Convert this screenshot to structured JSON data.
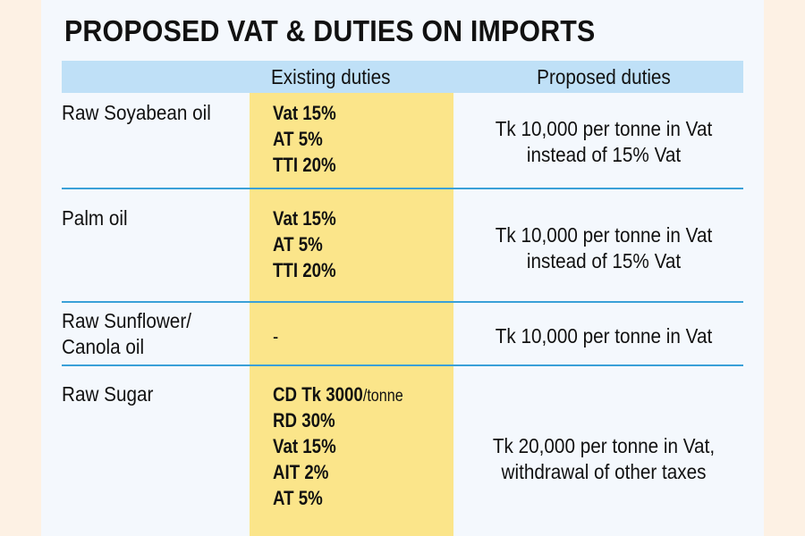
{
  "title": "PROPOSED VAT & DUTIES ON IMPORTS",
  "headers": {
    "item": "",
    "existing": "Existing duties",
    "proposed": "Proposed duties"
  },
  "rows": [
    {
      "item": [
        "Raw Soyabean oil"
      ],
      "existing": [
        "Vat 15%",
        "AT 5%",
        "TTI 20%"
      ],
      "proposed": [
        "Tk 10,000 per tonne in Vat",
        "instead of 15% Vat"
      ]
    },
    {
      "item": [
        "Palm oil"
      ],
      "existing": [
        "Vat 15%",
        "AT 5%",
        "TTI 20%"
      ],
      "proposed": [
        "Tk 10,000 per tonne in Vat",
        "instead of 15% Vat"
      ]
    },
    {
      "item": [
        "Raw Sunflower/",
        "Canola oil"
      ],
      "existing": [
        "-"
      ],
      "proposed": [
        "Tk 10,000 per tonne in Vat"
      ]
    },
    {
      "item": [
        "Raw Sugar"
      ],
      "existing": [
        "CD Tk 3000",
        "RD 30%",
        "Vat 15%",
        "AIT 2%",
        "AT 5%"
      ],
      "existing_unit": "/tonne",
      "proposed": [
        "Tk 20,000 per tonne in Vat,",
        "withdrawal of other taxes"
      ]
    }
  ],
  "colors": {
    "background": "#fdf1e4",
    "panel": "#f4f8fd",
    "header": "#bfe0f7",
    "existing_column": "#fbe58a",
    "separator": "#3aa0d8"
  }
}
